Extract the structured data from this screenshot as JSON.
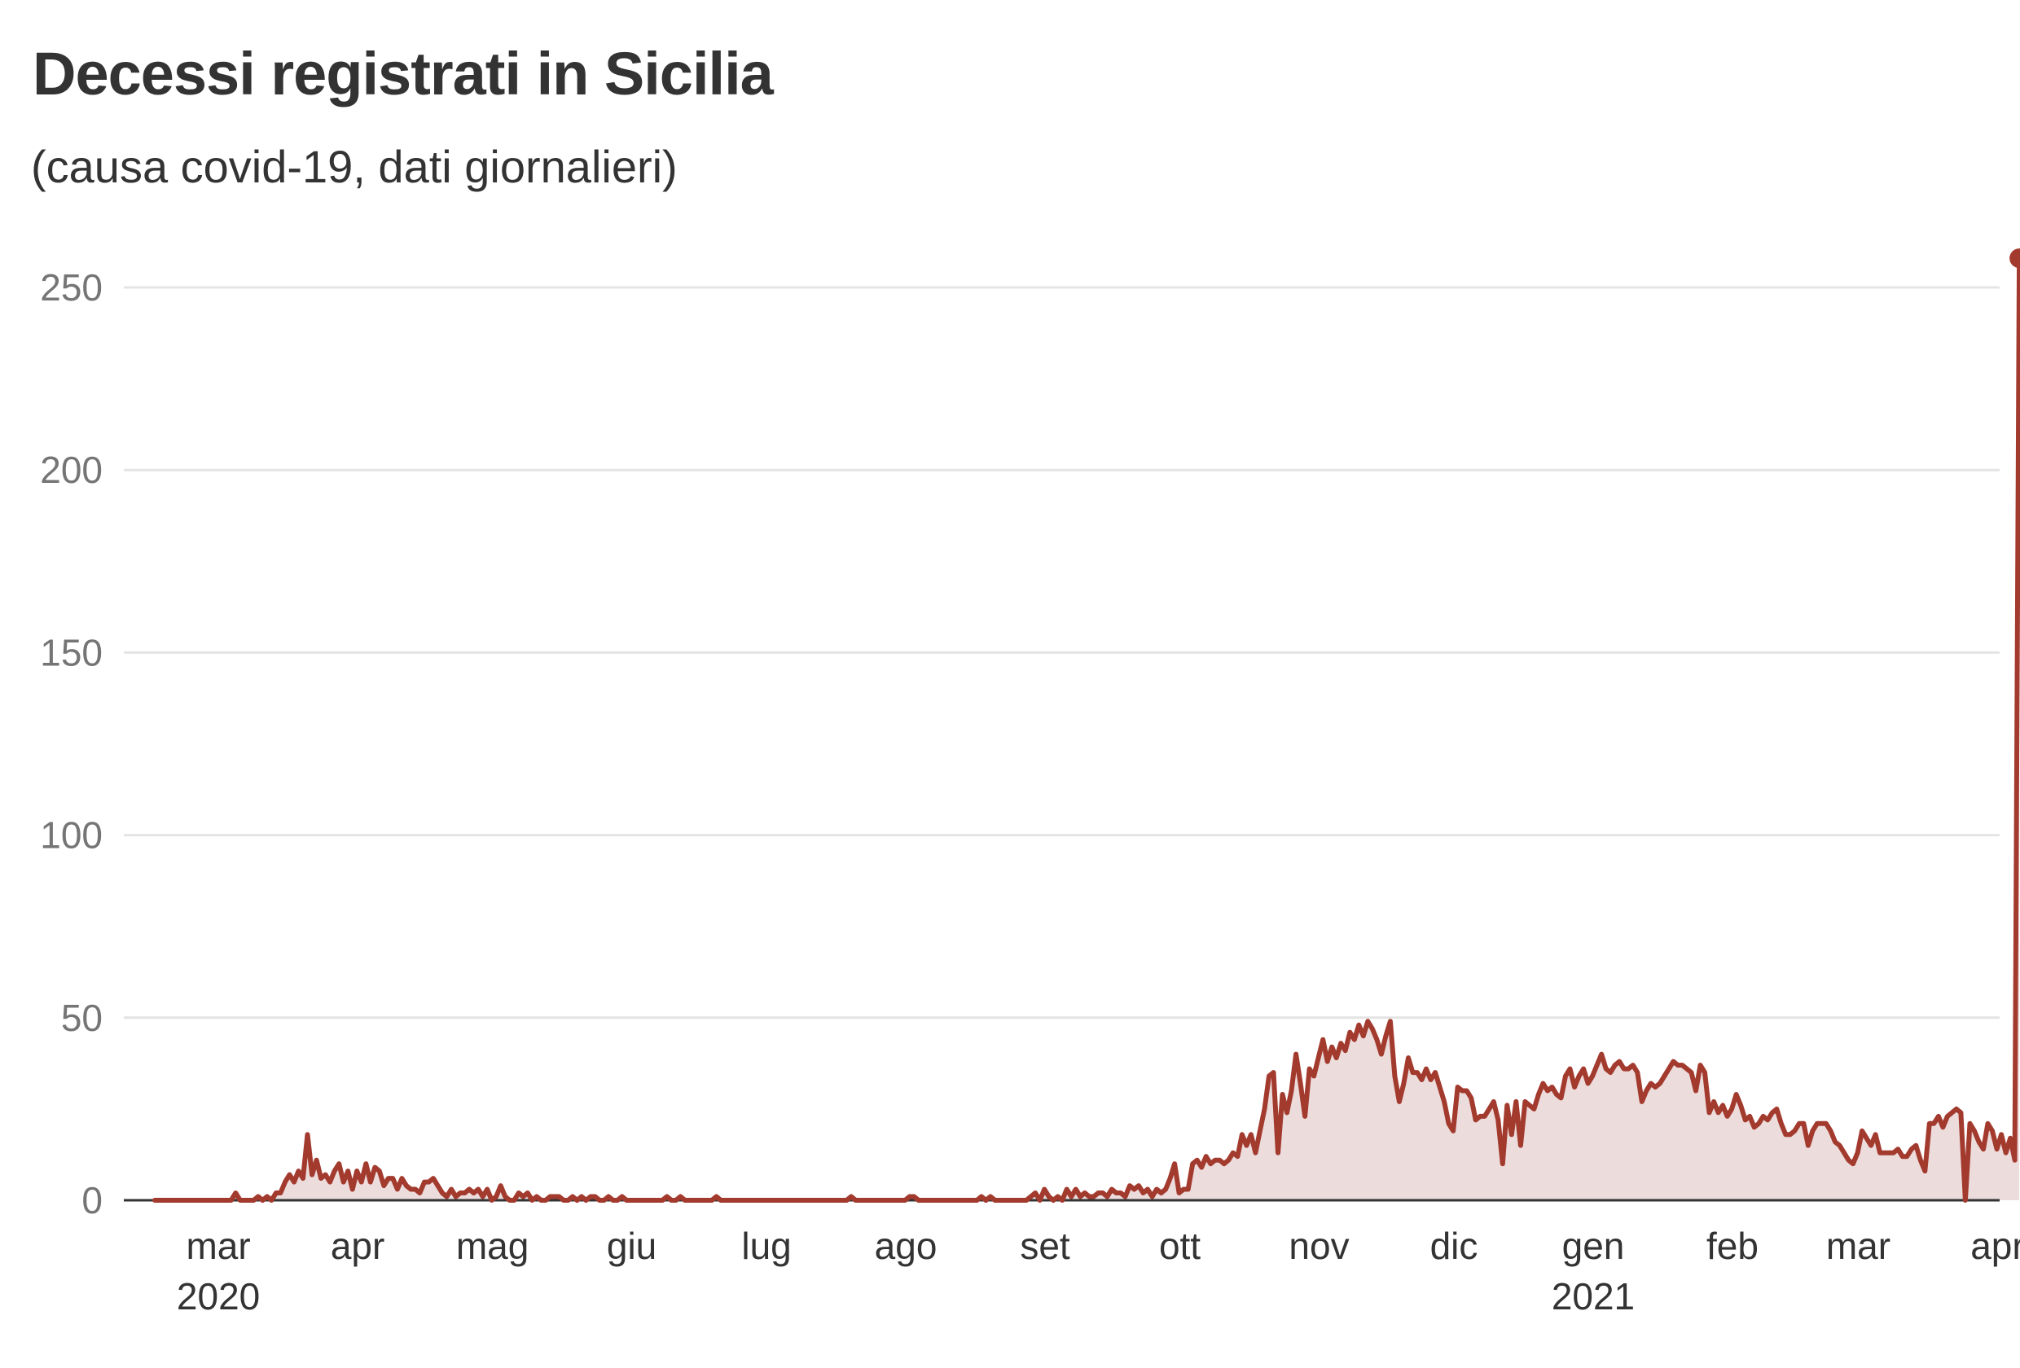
{
  "title": "Decessi registrati in Sicilia",
  "subtitle": "(causa covid-19, dati giornalieri)",
  "colors": {
    "line": "#a33a2e",
    "area": "#ecdcdc",
    "grid": "#e4e4e4",
    "axis": "#333333"
  },
  "chart_data": {
    "type": "area",
    "x_start": "2020-02-24",
    "ylim": [
      0,
      250
    ],
    "yticks": [
      0,
      50,
      100,
      150,
      200,
      250
    ],
    "xticks": [
      {
        "month": "mar",
        "year": "2020",
        "date": "2020-03-01"
      },
      {
        "month": "apr",
        "year": "",
        "date": "2020-04-01"
      },
      {
        "month": "mag",
        "year": "",
        "date": "2020-05-01"
      },
      {
        "month": "giu",
        "year": "",
        "date": "2020-06-01"
      },
      {
        "month": "lug",
        "year": "",
        "date": "2020-07-01"
      },
      {
        "month": "ago",
        "year": "",
        "date": "2020-08-01"
      },
      {
        "month": "set",
        "year": "",
        "date": "2020-09-01"
      },
      {
        "month": "ott",
        "year": "",
        "date": "2020-10-01"
      },
      {
        "month": "nov",
        "year": "",
        "date": "2020-11-01"
      },
      {
        "month": "dic",
        "year": "",
        "date": "2020-12-01"
      },
      {
        "month": "gen",
        "year": "2021",
        "date": "2021-01-01"
      },
      {
        "month": "feb",
        "year": "",
        "date": "2021-02-01"
      },
      {
        "month": "mar",
        "year": "",
        "date": "2021-03-01"
      },
      {
        "month": "apr",
        "year": "",
        "date": "2021-04-01"
      }
    ],
    "daily_values": [
      0,
      0,
      0,
      0,
      0,
      0,
      0,
      0,
      0,
      0,
      0,
      0,
      0,
      0,
      0,
      0,
      0,
      0,
      2,
      0,
      0,
      0,
      0,
      1,
      0,
      1,
      0,
      2,
      2,
      5,
      7,
      5,
      8,
      6,
      18,
      7,
      11,
      6,
      7,
      5,
      8,
      10,
      5,
      8,
      3,
      8,
      5,
      10,
      5,
      9,
      8,
      4,
      6,
      6,
      3,
      6,
      4,
      3,
      3,
      2,
      5,
      5,
      6,
      4,
      2,
      1,
      3,
      1,
      2,
      2,
      3,
      2,
      3,
      1,
      3,
      0,
      1,
      4,
      1,
      0,
      0,
      2,
      1,
      2,
      0,
      1,
      0,
      0,
      1,
      1,
      1,
      0,
      0,
      1,
      0,
      1,
      0,
      1,
      1,
      0,
      0,
      1,
      0,
      0,
      1,
      0,
      0,
      0,
      0,
      0,
      0,
      0,
      0,
      0,
      1,
      0,
      0,
      1,
      0,
      0,
      0,
      0,
      0,
      0,
      0,
      1,
      0,
      0,
      0,
      0,
      0,
      0,
      0,
      0,
      0,
      0,
      0,
      0,
      0,
      0,
      0,
      0,
      0,
      0,
      0,
      0,
      0,
      0,
      0,
      0,
      0,
      0,
      0,
      0,
      0,
      1,
      0,
      0,
      0,
      0,
      0,
      0,
      0,
      0,
      0,
      0,
      0,
      0,
      1,
      1,
      0,
      0,
      0,
      0,
      0,
      0,
      0,
      0,
      0,
      0,
      0,
      0,
      0,
      0,
      1,
      0,
      1,
      0,
      0,
      0,
      0,
      0,
      0,
      0,
      0,
      1,
      2,
      0,
      3,
      1,
      0,
      1,
      0,
      3,
      1,
      3,
      1,
      2,
      1,
      1,
      2,
      2,
      1,
      3,
      2,
      2,
      1,
      4,
      3,
      4,
      2,
      3,
      1,
      3,
      2,
      3,
      6,
      10,
      2,
      3,
      3,
      10,
      11,
      9,
      12,
      10,
      11,
      11,
      10,
      11,
      13,
      12,
      18,
      15,
      18,
      13,
      19,
      25,
      34,
      35,
      13,
      29,
      24,
      30,
      40,
      32,
      23,
      36,
      34,
      39,
      44,
      38,
      42,
      39,
      43,
      41,
      46,
      44,
      48,
      45,
      49,
      47,
      44,
      40,
      45,
      49,
      34,
      27,
      32,
      39,
      35,
      35,
      33,
      36,
      33,
      35,
      31,
      27,
      21,
      19,
      31,
      30,
      30,
      28,
      22,
      23,
      23,
      25,
      27,
      22,
      10,
      26,
      18,
      27,
      15,
      27,
      26,
      25,
      29,
      32,
      30,
      31,
      29,
      28,
      34,
      36,
      31,
      34,
      36,
      32,
      34,
      37,
      40,
      36,
      35,
      37,
      38,
      36,
      36,
      37,
      35,
      27,
      30,
      32,
      31,
      32,
      34,
      36,
      38,
      37,
      37,
      36,
      35,
      30,
      37,
      35,
      24,
      27,
      24,
      26,
      23,
      25,
      29,
      26,
      22,
      23,
      20,
      21,
      23,
      22,
      24,
      25,
      21,
      18,
      18,
      19,
      21,
      21,
      15,
      19,
      21,
      21,
      21,
      19,
      16,
      15,
      13,
      11,
      10,
      13,
      19,
      17,
      15,
      18,
      13,
      13,
      13,
      13,
      14,
      12,
      12,
      14,
      15,
      11,
      8,
      21,
      21,
      23,
      20,
      23,
      24,
      25,
      24,
      0,
      21,
      19,
      16,
      14,
      21,
      19,
      14,
      18,
      13,
      17,
      11,
      258
    ]
  }
}
